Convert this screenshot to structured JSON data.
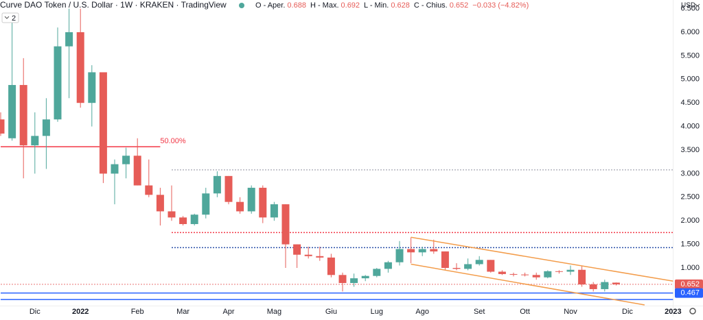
{
  "chart_data": {
    "type": "candlestick",
    "title": "Curve DAO Token / U.S. Dollar · 1W · KRAKEN · TradingView",
    "currency": "USD",
    "indicator_count": "2",
    "legend": {
      "open_label": "O - Aper.",
      "open": 0.688,
      "high_label": "H - Max.",
      "high": 0.692,
      "low_label": "L - Min.",
      "low": 0.628,
      "close_label": "C - Chius.",
      "close": 0.652,
      "change": "−0.033 (−4.82%)"
    },
    "categories": [
      null,
      null,
      null,
      "Dic",
      null,
      null,
      null,
      "2022",
      null,
      null,
      null,
      null,
      "Feb",
      null,
      null,
      null,
      "Mar",
      null,
      null,
      null,
      "Apr",
      null,
      null,
      null,
      "Mag",
      null,
      null,
      null,
      null,
      "Giu",
      null,
      null,
      null,
      "Lug",
      null,
      null,
      null,
      "Ago",
      null,
      null,
      null,
      null,
      "Set",
      null,
      null,
      null,
      "Ott",
      null,
      null,
      null,
      "Nov",
      null,
      null,
      null,
      null,
      "Dic",
      null,
      null,
      null,
      "2023"
    ],
    "open": [
      4.15,
      3.75,
      4.88,
      3.6,
      3.8,
      4.15,
      5.7,
      6.0,
      4.5,
      5.15,
      3.0,
      3.2,
      3.38,
      2.75,
      2.55,
      2.2,
      2.07,
      1.93,
      2.13,
      2.58,
      2.95,
      2.4,
      2.2,
      2.7,
      2.07,
      2.35,
      1.5,
      1.28,
      1.25,
      1.22,
      0.85,
      0.68,
      0.78,
      0.83,
      0.98,
      1.12,
      1.4,
      1.33,
      1.4,
      1.35,
      1.0,
      0.98,
      1.08,
      1.17,
      0.92,
      0.87,
      0.86,
      0.85,
      0.8,
      0.93,
      0.92,
      0.96,
      0.65,
      0.55,
      0.688,
      null,
      null,
      null,
      null,
      null
    ],
    "high": [
      4.3,
      6.2,
      5.45,
      4.3,
      4.6,
      6.1,
      6.5,
      6.5,
      5.3,
      5.15,
      3.3,
      3.55,
      3.75,
      3.3,
      2.7,
      2.75,
      2.1,
      2.15,
      2.7,
      3.05,
      2.95,
      2.5,
      2.75,
      2.75,
      2.4,
      2.35,
      1.5,
      1.45,
      1.45,
      1.3,
      0.9,
      0.88,
      0.85,
      1.0,
      1.15,
      1.57,
      1.65,
      1.45,
      1.6,
      1.35,
      1.1,
      1.2,
      1.25,
      1.17,
      0.95,
      0.9,
      0.9,
      0.9,
      0.95,
      0.95,
      1.05,
      1.05,
      0.7,
      0.75,
      0.692,
      null,
      null,
      null,
      null,
      null
    ],
    "low": [
      3.8,
      3.7,
      2.9,
      3.0,
      3.1,
      4.1,
      4.6,
      4.4,
      4.0,
      2.8,
      2.35,
      2.9,
      2.75,
      2.5,
      1.9,
      2.0,
      1.9,
      1.9,
      2.05,
      2.5,
      2.35,
      2.15,
      2.15,
      1.95,
      2.0,
      1.0,
      1.0,
      1.2,
      1.15,
      0.8,
      0.5,
      0.6,
      0.72,
      0.8,
      0.9,
      1.05,
      1.1,
      1.25,
      1.3,
      0.95,
      0.95,
      0.95,
      1.05,
      0.9,
      0.85,
      0.82,
      0.82,
      0.75,
      0.78,
      0.88,
      0.85,
      0.6,
      0.5,
      0.5,
      0.628,
      null,
      null,
      null,
      null,
      null
    ],
    "close": [
      3.85,
      4.88,
      3.6,
      3.8,
      4.15,
      5.7,
      6.0,
      4.5,
      5.15,
      3.0,
      3.2,
      3.38,
      2.75,
      2.55,
      2.2,
      2.07,
      1.93,
      2.13,
      2.58,
      2.95,
      2.4,
      2.2,
      2.7,
      2.07,
      2.35,
      1.5,
      1.28,
      1.25,
      1.22,
      0.85,
      0.68,
      0.78,
      0.83,
      0.98,
      1.12,
      1.4,
      1.33,
      1.4,
      1.35,
      1.0,
      0.98,
      1.08,
      1.17,
      0.92,
      0.87,
      0.86,
      0.85,
      0.8,
      0.93,
      0.92,
      0.96,
      0.65,
      0.55,
      0.7,
      0.652,
      null,
      null,
      null,
      null,
      null
    ],
    "up_color": "#4fa79b",
    "down_color": "#e65c57",
    "ylim": [
      0.215,
      6.683
    ],
    "yticks": [
      {
        "value": 1,
        "label": "1.000"
      },
      {
        "value": 1.5,
        "label": "1.500"
      },
      {
        "value": 2,
        "label": "2.000"
      },
      {
        "value": 2.5,
        "label": "2.500"
      },
      {
        "value": 3,
        "label": "3.000"
      },
      {
        "value": 3.5,
        "label": "3.500"
      },
      {
        "value": 4,
        "label": "4.000"
      },
      {
        "value": 4.5,
        "label": "4.500"
      },
      {
        "value": 5,
        "label": "5.000"
      },
      {
        "value": 5.5,
        "label": "5.500"
      },
      {
        "value": 6,
        "label": "6.000"
      },
      {
        "value": 6.5,
        "label": "6.500"
      }
    ],
    "levels": [
      {
        "value": 3.57,
        "from": 0,
        "to": 14,
        "color": "#f23645",
        "style": "solid",
        "label": "50.00%"
      },
      {
        "value": 3.08,
        "from": 15,
        "to": 59,
        "color": "#b2b5be",
        "style": "dotted"
      },
      {
        "value": 1.75,
        "from": 15,
        "to": 59,
        "color": "#f23645",
        "style": "dotted"
      },
      {
        "value": 1.43,
        "from": 15,
        "to": 59,
        "color": "#2a4fa8",
        "style": "dotted"
      },
      {
        "value": 0.652,
        "from": 0,
        "to": 59,
        "color": "#f0a0a0",
        "style": "dotted"
      },
      {
        "value": 0.467,
        "from": 0,
        "to": 59,
        "color": "#2962ff",
        "style": "solid"
      },
      {
        "value": 0.33,
        "from": 0,
        "to": 59,
        "color": "#2962ff",
        "style": "solid"
      }
    ],
    "trend_lines": [
      {
        "from": [
          36,
          1.65
        ],
        "to": [
          59,
          0.72
        ],
        "color": "#f39c4a"
      },
      {
        "from": [
          36,
          1.08
        ],
        "to": [
          56.5,
          0.215
        ],
        "color": "#f39c4a"
      }
    ],
    "price_tags": [
      {
        "value": 0.652,
        "label": "0.652",
        "color": "#e65c57"
      },
      {
        "value": 0.467,
        "label": "0.467",
        "color": "#2962ff"
      }
    ]
  }
}
